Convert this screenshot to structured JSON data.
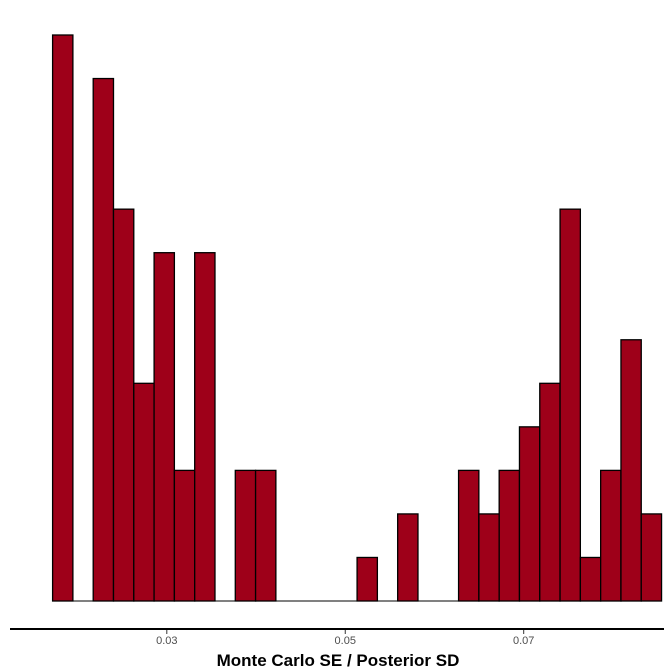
{
  "chart_data": {
    "type": "bar",
    "title": "",
    "xlabel": "Monte Carlo SE / Posterior SD",
    "ylabel": "",
    "x_ticks": [
      "0.03",
      "0.05",
      "0.07"
    ],
    "x_tick_values": [
      0.03,
      0.05,
      0.07
    ],
    "xlim": [
      0.01265,
      0.0855
    ],
    "ylim": [
      0,
      13
    ],
    "bin_start": 0.0172,
    "bin_width": 0.002275,
    "counts": [
      13,
      0,
      12,
      9,
      5,
      8,
      3,
      8,
      0,
      3,
      3,
      0,
      0,
      0,
      0,
      1,
      0,
      2,
      0,
      0,
      3,
      2,
      3,
      4,
      5,
      9,
      1,
      3,
      6,
      2
    ],
    "bar_fill": "#9e0019",
    "bar_stroke": "#000000",
    "grid": false,
    "legend": "none"
  }
}
